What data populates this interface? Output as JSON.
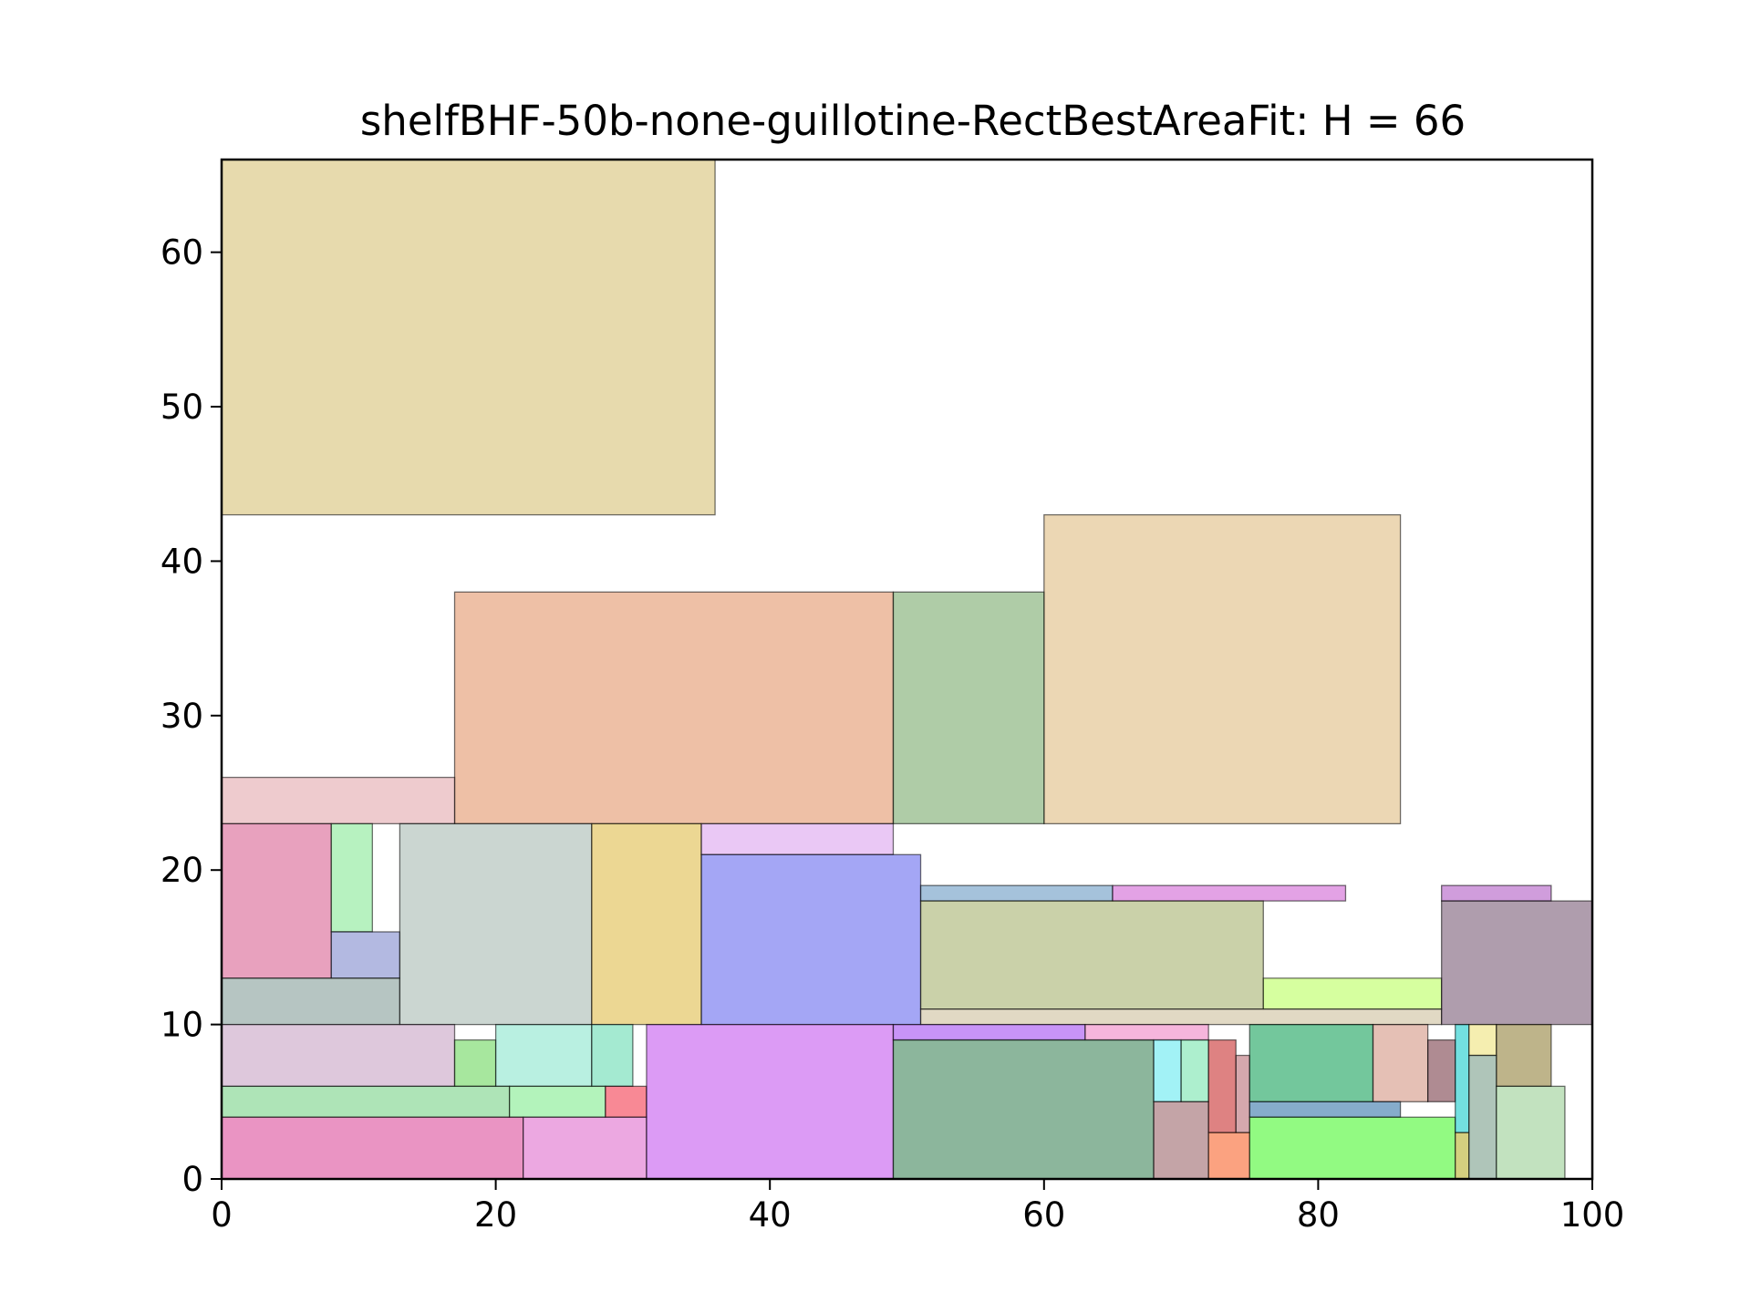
{
  "chart_data": {
    "type": "rectangles",
    "title": "shelfBHF-50b-none-guillotine-RectBestAreaFit: H = 66",
    "xlim": [
      0,
      100
    ],
    "ylim": [
      0,
      66
    ],
    "grid": false,
    "x_ticks": [
      "0",
      "20",
      "40",
      "60",
      "80",
      "100"
    ],
    "y_ticks": [
      "0",
      "10",
      "20",
      "30",
      "40",
      "50",
      "60"
    ],
    "rects": [
      {
        "x": 0,
        "y": 43,
        "w": 36,
        "h": 23,
        "color": "#d4bb6a"
      },
      {
        "x": 60,
        "y": 23,
        "w": 26,
        "h": 20,
        "color": "#ddb676"
      },
      {
        "x": 17,
        "y": 23,
        "w": 32,
        "h": 15,
        "color": "#e08d5c"
      },
      {
        "x": 49,
        "y": 23,
        "w": 11,
        "h": 15,
        "color": "#6ea35e"
      },
      {
        "x": 0,
        "y": 23,
        "w": 17,
        "h": 3,
        "color": "#e0a0a6"
      },
      {
        "x": 0,
        "y": 13,
        "w": 8,
        "h": 10,
        "color": "#d65488"
      },
      {
        "x": 8,
        "y": 16,
        "w": 3,
        "h": 7,
        "color": "#7be88c"
      },
      {
        "x": 8,
        "y": 13,
        "w": 5,
        "h": 3,
        "color": "#7480c8"
      },
      {
        "x": 0,
        "y": 10,
        "w": 13,
        "h": 3,
        "color": "#7a9690"
      },
      {
        "x": 13,
        "y": 10,
        "w": 14,
        "h": 13,
        "color": "#a0b5ab"
      },
      {
        "x": 27,
        "y": 10,
        "w": 8,
        "h": 13,
        "color": "#dcb63a"
      },
      {
        "x": 35,
        "y": 21,
        "w": 14,
        "h": 2,
        "color": "#d89aed"
      },
      {
        "x": 35,
        "y": 10,
        "w": 16,
        "h": 11,
        "color": "#5a5ded"
      },
      {
        "x": 51,
        "y": 18,
        "w": 14,
        "h": 1,
        "color": "#5b8fbd"
      },
      {
        "x": 65,
        "y": 18,
        "w": 17,
        "h": 1,
        "color": "#cc55cf"
      },
      {
        "x": 51,
        "y": 11,
        "w": 25,
        "h": 7,
        "color": "#9eab62"
      },
      {
        "x": 76,
        "y": 11,
        "w": 13,
        "h": 2,
        "color": "#b5ff50"
      },
      {
        "x": 51,
        "y": 10,
        "w": 38,
        "h": 1,
        "color": "#c8b994"
      },
      {
        "x": 89,
        "y": 18,
        "w": 8,
        "h": 1,
        "color": "#a94cc0"
      },
      {
        "x": 89,
        "y": 10,
        "w": 11,
        "h": 8,
        "color": "#6e4c6a"
      },
      {
        "x": 0,
        "y": 6,
        "w": 17,
        "h": 4,
        "color": "#c39ac0"
      },
      {
        "x": 17,
        "y": 6,
        "w": 3,
        "h": 3,
        "color": "#5fd44e"
      },
      {
        "x": 20,
        "y": 6,
        "w": 7,
        "h": 4,
        "color": "#7fe3c8"
      },
      {
        "x": 27,
        "y": 6,
        "w": 3,
        "h": 4,
        "color": "#5ad9ac"
      },
      {
        "x": 0,
        "y": 4,
        "w": 21,
        "h": 2,
        "color": "#6ccd7c"
      },
      {
        "x": 21,
        "y": 4,
        "w": 7,
        "h": 2,
        "color": "#74ea84"
      },
      {
        "x": 28,
        "y": 4,
        "w": 3,
        "h": 2,
        "color": "#f2283e"
      },
      {
        "x": 0,
        "y": 0,
        "w": 22,
        "h": 4,
        "color": "#d83d92"
      },
      {
        "x": 22,
        "y": 0,
        "w": 9,
        "h": 4,
        "color": "#dc60c8"
      },
      {
        "x": 31,
        "y": 0,
        "w": 18,
        "h": 10,
        "color": "#c049ed"
      },
      {
        "x": 49,
        "y": 9,
        "w": 14,
        "h": 1,
        "color": "#9a3df0"
      },
      {
        "x": 63,
        "y": 9,
        "w": 9,
        "h": 1,
        "color": "#ec78c0"
      },
      {
        "x": 49,
        "y": 0,
        "w": 19,
        "h": 9,
        "color": "#2d7a4a"
      },
      {
        "x": 68,
        "y": 5,
        "w": 2,
        "h": 4,
        "color": "#56e7ee"
      },
      {
        "x": 70,
        "y": 5,
        "w": 2,
        "h": 4,
        "color": "#6ae1a6"
      },
      {
        "x": 68,
        "y": 0,
        "w": 4,
        "h": 5,
        "color": "#945a5e"
      },
      {
        "x": 72,
        "y": 3,
        "w": 2,
        "h": 6,
        "color": "#c21c1c"
      },
      {
        "x": 74,
        "y": 3,
        "w": 1,
        "h": 5,
        "color": "#b2606a"
      },
      {
        "x": 72,
        "y": 0,
        "w": 3,
        "h": 3,
        "color": "#f75518"
      },
      {
        "x": 75,
        "y": 5,
        "w": 9,
        "h": 5,
        "color": "#00994a"
      },
      {
        "x": 84,
        "y": 5,
        "w": 4,
        "h": 5,
        "color": "#d08c78"
      },
      {
        "x": 88,
        "y": 5,
        "w": 2,
        "h": 4,
        "color": "#6e2c38"
      },
      {
        "x": 75,
        "y": 4,
        "w": 11,
        "h": 1,
        "color": "#2268a0"
      },
      {
        "x": 75,
        "y": 0,
        "w": 15,
        "h": 4,
        "color": "#38f51b"
      },
      {
        "x": 90,
        "y": 3,
        "w": 1,
        "h": 7,
        "color": "#00c6c6"
      },
      {
        "x": 91,
        "y": 8,
        "w": 2,
        "h": 2,
        "color": "#ede070"
      },
      {
        "x": 93,
        "y": 6,
        "w": 4,
        "h": 4,
        "color": "#88772a"
      },
      {
        "x": 90,
        "y": 0,
        "w": 1,
        "h": 3,
        "color": "#b0a716"
      },
      {
        "x": 91,
        "y": 0,
        "w": 2,
        "h": 8,
        "color": "#6e9580"
      },
      {
        "x": 93,
        "y": 0,
        "w": 5,
        "h": 6,
        "color": "#8fca8a"
      }
    ]
  }
}
